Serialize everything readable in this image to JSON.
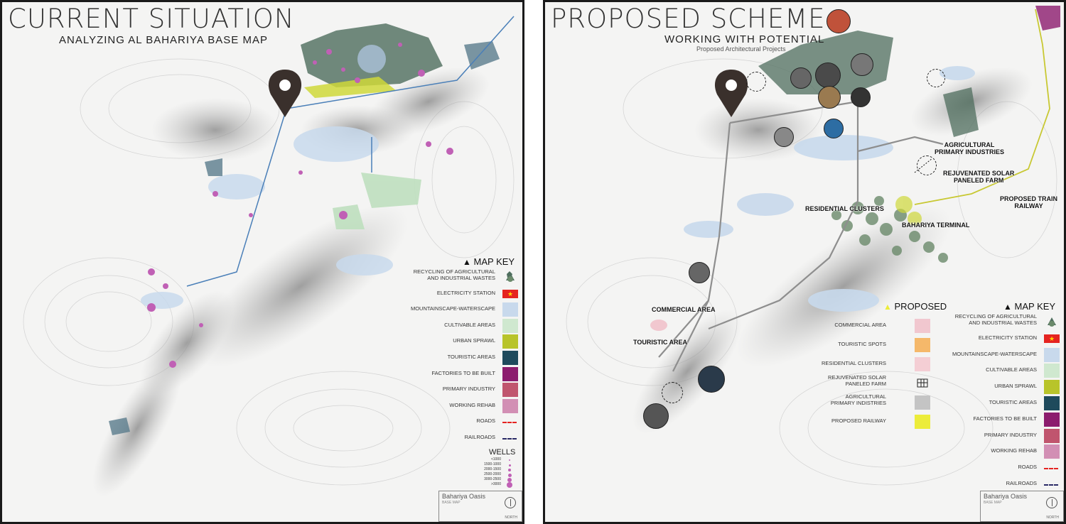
{
  "left": {
    "title": "CURRENT SITUATION",
    "subtitle": "ANALYZING AL BAHARIYA BASE MAP",
    "map_key_title": "MAP KEY",
    "key": [
      {
        "label": "RECYCLING OF AGRICULTURAL\nAND INDUSTRIAL WASTES",
        "icon": "recycle-icon"
      },
      {
        "label": "ELECTRICITY STATION",
        "color": "#e52320",
        "icon": "star-icon"
      },
      {
        "label": "MOUNTAINSCAPE-WATERSCAPE",
        "color": "#c8d9ec"
      },
      {
        "label": "CULTIVABLE AREAS",
        "color": "#cfe8cf"
      },
      {
        "label": "URBAN SPRAWL",
        "color": "#b8c42a"
      },
      {
        "label": "TOURISTIC AREAS",
        "color": "#1e4a5c"
      },
      {
        "label": "FACTORIES TO BE BUILT",
        "color": "#8c1c6e"
      },
      {
        "label": "PRIMARY INDUSTRY",
        "color": "#c0556e"
      },
      {
        "label": "WORKING REHAB",
        "color": "#d28fb4"
      },
      {
        "label": "ROADS",
        "color": "#e52320",
        "line": true
      },
      {
        "label": "RAILROADS",
        "color": "#2a2a66",
        "line": true
      }
    ],
    "wells_title": "WELLS",
    "wells": [
      "<1000",
      "1500-1000",
      "2000-1500",
      "2500-2000",
      "3000-2500",
      ">3000"
    ],
    "basemap_title": "Bahariya Oasis",
    "basemap_sub": "BASE MAP",
    "north": "NORTH"
  },
  "right": {
    "title": "PROPOSED SCHEME",
    "subtitle": "WORKING WITH POTENTIAL",
    "subtitle2": "Proposed Architectural Projects",
    "proposed_title": "PROPOSED",
    "proposed_key": [
      {
        "label": "COMMERCIAL AREA",
        "color": "#f1c7cf"
      },
      {
        "label": "TOURISTIC SPOTS",
        "color": "#f5b86a"
      },
      {
        "label": "RESIDENTIAL CLUSTERS",
        "color": "#f4ced4"
      },
      {
        "label": "REJUVENATED SOLAR\nPANELED FARM",
        "icon": "solar-panel-icon"
      },
      {
        "label": "AGRICULTURAL\nPRIMARY INDISTRIES",
        "color": "#c4c4c4"
      },
      {
        "label": "PROPOSED RAILWAY",
        "color": "#ecec3a"
      }
    ],
    "map_key_title": "MAP KEY",
    "key": [
      {
        "label": "RECYCLING OF AGRICULTURAL\nAND INDUSTRIAL WASTES",
        "icon": "recycle-icon"
      },
      {
        "label": "ELECTRICITY STATION",
        "color": "#e52320",
        "icon": "star-icon"
      },
      {
        "label": "MOUNTAINSCAPE-WATERSCAPE",
        "color": "#c8d9ec"
      },
      {
        "label": "CULTIVABLE AREAS",
        "color": "#cfe8cf"
      },
      {
        "label": "URBAN SPRAWL",
        "color": "#b8c42a"
      },
      {
        "label": "TOURISTIC AREAS",
        "color": "#1e4a5c"
      },
      {
        "label": "FACTORIES TO BE BUILT",
        "color": "#8c1c6e"
      },
      {
        "label": "PRIMARY INDUSTRY",
        "color": "#c0556e"
      },
      {
        "label": "WORKING REHAB",
        "color": "#d28fb4"
      },
      {
        "label": "ROADS",
        "color": "#e52320",
        "line": true
      },
      {
        "label": "RAILROADS",
        "color": "#2a2a66",
        "line": true
      }
    ],
    "labels": {
      "agricultural": "AGRICULTURAL\nPRIMARY INDUSTRIES",
      "solar": "REJUVENATED SOLAR\nPANELED FARM",
      "train": "PROPOSED TRAIN\nRAILWAY",
      "residential": "RESIDENTIAL CLUSTERS",
      "terminal": "BAHARIYA TERMINAL",
      "commercial": "COMMERCIAL AREA",
      "touristic": "TOURISTIC AREA"
    },
    "basemap_title": "Bahariya Oasis",
    "basemap_sub": "BASE MAP",
    "north": "NORTH"
  },
  "colors": {
    "land": "#f4f4f3",
    "terrain": "#9a9a9a",
    "water": "#c8d9ec",
    "vegetation": "#4f6e5e",
    "cultivable": "#bfe0bf",
    "wells": "#c060b5",
    "pin": "#3a302c",
    "road_blue": "#4a7fb8",
    "proposed_rail": "#c8c832"
  }
}
